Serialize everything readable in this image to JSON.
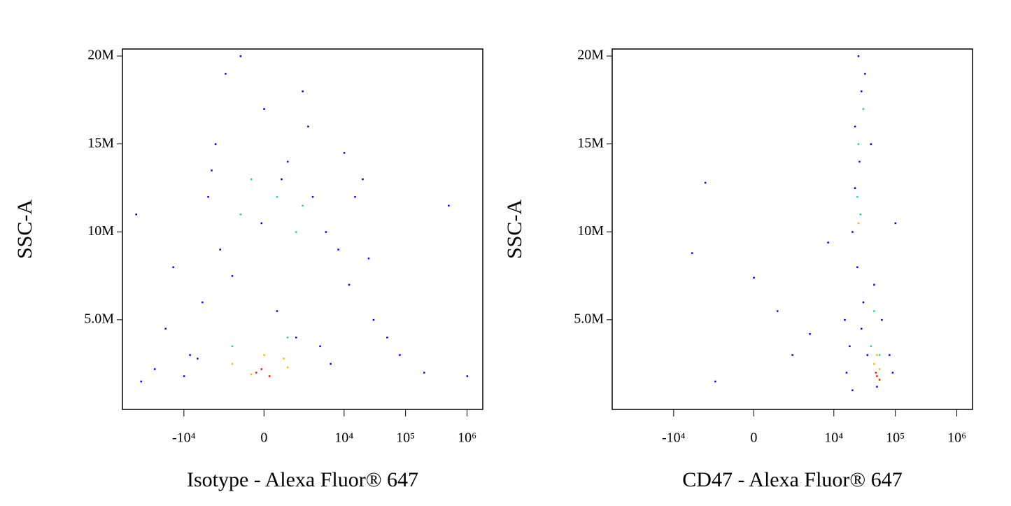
{
  "chart_data": [
    {
      "type": "scatter",
      "xlabel": "Isotype - Alexa Fluor® 647",
      "ylabel": "SSC-A",
      "xscale": "logicle",
      "xlim": [
        -100000,
        1800000
      ],
      "ylim": [
        -100000,
        20400000
      ],
      "xticks": [
        {
          "value": -10000,
          "label": "-10⁴"
        },
        0,
        {
          "value": 10000,
          "label": "10⁴"
        },
        {
          "value": 100000,
          "label": "10⁵"
        },
        {
          "value": 1000000,
          "label": "10⁶"
        }
      ],
      "yticks": [
        {
          "value": 5000000,
          "label": "5.0M"
        },
        {
          "value": 10000000,
          "label": "10M"
        },
        {
          "value": 15000000,
          "label": "15M"
        },
        {
          "value": 20000000,
          "label": "20M"
        }
      ],
      "series": [
        {
          "color": "#0000ff",
          "x": [
            -50000,
            -30000,
            -20000,
            -60000,
            -15000,
            -8000,
            -5000,
            -4000,
            -3000,
            -2000,
            -1000,
            0,
            1000,
            2000,
            3000,
            5000,
            8000,
            12000,
            20000,
            30000,
            50000,
            80000,
            200000,
            500000,
            1000000,
            -2500,
            -1500,
            500,
            1500,
            4000,
            6000,
            -6000,
            -10000,
            10000,
            15000,
            -100,
            700,
            2500,
            -3500,
            25000
          ],
          "values": [
            1500000,
            2200000,
            4500000,
            11000000,
            8000000,
            3000000,
            6000000,
            12000000,
            15000000,
            19000000,
            20000000,
            17000000,
            14000000,
            18000000,
            12000000,
            10000000,
            9000000,
            7000000,
            13000000,
            5000000,
            4000000,
            3000000,
            2000000,
            11500000,
            1800000,
            9000000,
            7500000,
            5500000,
            4000000,
            3500000,
            2500000,
            2800000,
            1800000,
            14500000,
            12000000,
            10500000,
            13000000,
            16000000,
            13500000,
            8500000
          ]
        },
        {
          "color": "#20d0c0",
          "x": [
            -1000,
            500,
            1500,
            -500,
            2000,
            -1500,
            1000
          ],
          "values": [
            11000000,
            12000000,
            10000000,
            13000000,
            11500000,
            3500000,
            4000000
          ]
        },
        {
          "color": "#f0c000",
          "x": [
            -1500,
            0,
            1000,
            -500,
            800
          ],
          "values": [
            2500000,
            3000000,
            2300000,
            1900000,
            2800000
          ]
        },
        {
          "color": "#e02000",
          "x": [
            -300,
            200,
            -100
          ],
          "values": [
            2000000,
            1800000,
            2200000
          ]
        }
      ]
    },
    {
      "type": "scatter",
      "xlabel": "CD47 - Alexa Fluor® 647",
      "ylabel": "SSC-A",
      "xscale": "logicle",
      "xlim": [
        -100000,
        1800000
      ],
      "ylim": [
        -100000,
        20400000
      ],
      "xticks": [
        {
          "value": -10000,
          "label": "-10⁴"
        },
        0,
        {
          "value": 10000,
          "label": "10⁴"
        },
        {
          "value": 100000,
          "label": "10⁵"
        },
        {
          "value": 1000000,
          "label": "10⁶"
        }
      ],
      "yticks": [
        {
          "value": 5000000,
          "label": "5.0M"
        },
        {
          "value": 10000000,
          "label": "10M"
        },
        {
          "value": 15000000,
          "label": "15M"
        },
        {
          "value": 20000000,
          "label": "20M"
        }
      ],
      "series": [
        {
          "color": "#0000ff",
          "x": [
            -3000,
            -5000,
            0,
            1000,
            2000,
            -2000,
            4000,
            8000,
            15000,
            16000,
            20000,
            25000,
            28000,
            22000,
            26000,
            20000,
            24000,
            30000,
            45000,
            60000,
            80000,
            90000,
            100000,
            35000,
            18000,
            40000,
            32000,
            22000,
            50000,
            28000
          ],
          "values": [
            12800000,
            8800000,
            7400000,
            5500000,
            3000000,
            1500000,
            4200000,
            9400000,
            5000000,
            2000000,
            1000000,
            20000000,
            18000000,
            16000000,
            14000000,
            10000000,
            8000000,
            6000000,
            7000000,
            5000000,
            3000000,
            2000000,
            10500000,
            3000000,
            3500000,
            15000000,
            19000000,
            12500000,
            1200000,
            4500000
          ]
        },
        {
          "color": "#20d0c0",
          "x": [
            25000,
            24000,
            27000,
            30000,
            45000,
            40000,
            55000
          ],
          "values": [
            15000000,
            12000000,
            11000000,
            17000000,
            5500000,
            3500000,
            3000000
          ]
        },
        {
          "color": "#f0c000",
          "x": [
            45000,
            55000,
            25000,
            50000
          ],
          "values": [
            2500000,
            2200000,
            10500000,
            3000000
          ]
        },
        {
          "color": "#e02000",
          "x": [
            50000,
            55000,
            48000
          ],
          "values": [
            1800000,
            1600000,
            2000000
          ]
        }
      ]
    }
  ]
}
